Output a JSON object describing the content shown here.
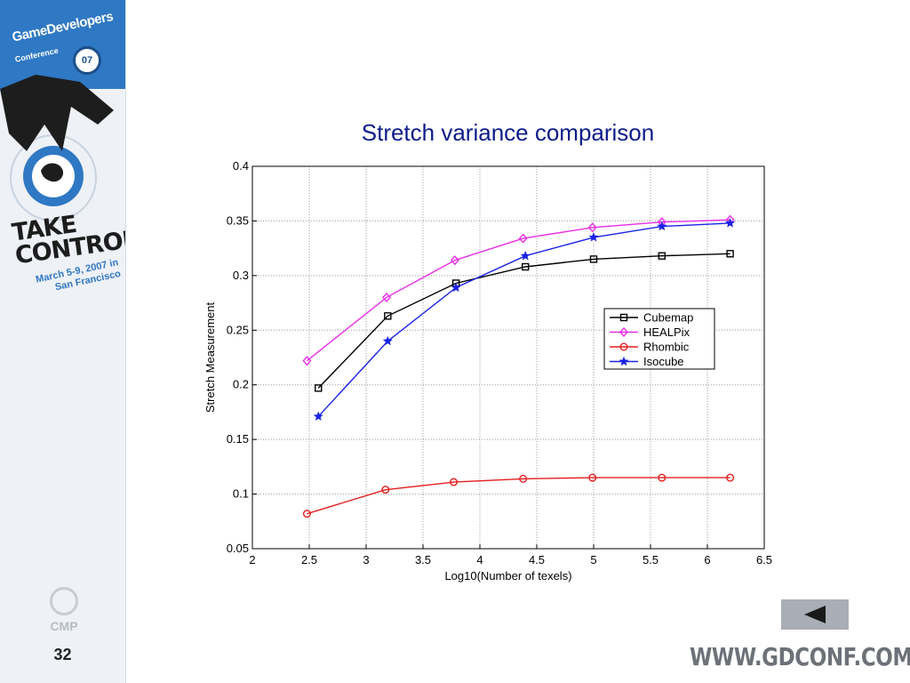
{
  "sidebar": {
    "brand_line1": "GameDevelopers",
    "brand_line2": "Conference",
    "brand_year": "07",
    "slogan": "TAKE CONTROL",
    "dates": "March 5-9, 2007 in San Francisco",
    "sponsor": "CMP",
    "page_number": "32"
  },
  "footer": {
    "website": "WWW.GDCONF.COM",
    "back_icon": "triangle-left-icon"
  },
  "colors": {
    "title": "#0c1d8a",
    "brand_blue": "#2f78c4",
    "cubemap": "#000000",
    "healpix": "#e62ee6",
    "rhombic": "#e61e1e",
    "isocube": "#1a23e6"
  },
  "chart_data": {
    "type": "line",
    "title": "Stretch variance comparison",
    "xlabel": "Log10(Number of texels)",
    "ylabel": "Stretch Measurement",
    "xlim": [
      2,
      6.5
    ],
    "ylim": [
      0.05,
      0.4
    ],
    "xticks": [
      "2",
      "2.5",
      "3",
      "3.5",
      "4",
      "4.5",
      "5",
      "5.5",
      "6",
      "6.5"
    ],
    "yticks": [
      "0.05",
      "0.1",
      "0.15",
      "0.2",
      "0.25",
      "0.3",
      "0.35",
      "0.4"
    ],
    "grid": true,
    "legend_position": "right-middle",
    "series": [
      {
        "name": "Cubemap",
        "marker": "square",
        "color": "#000000",
        "x": [
          2.58,
          3.19,
          3.79,
          4.4,
          5.0,
          5.6,
          6.2
        ],
        "y": [
          0.197,
          0.263,
          0.293,
          0.308,
          0.315,
          0.318,
          0.32
        ]
      },
      {
        "name": "HEALPix",
        "marker": "diamond",
        "color": "#e62ee6",
        "x": [
          2.48,
          3.18,
          3.78,
          4.38,
          4.99,
          5.6,
          6.2
        ],
        "y": [
          0.222,
          0.28,
          0.314,
          0.334,
          0.344,
          0.349,
          0.351
        ]
      },
      {
        "name": "Rhombic",
        "marker": "circle",
        "color": "#e61e1e",
        "x": [
          2.48,
          3.17,
          3.77,
          4.38,
          4.99,
          5.6,
          6.2
        ],
        "y": [
          0.082,
          0.104,
          0.111,
          0.114,
          0.115,
          0.115,
          0.115
        ]
      },
      {
        "name": "Isocube",
        "marker": "star",
        "color": "#1a23e6",
        "x": [
          2.58,
          3.19,
          3.79,
          4.4,
          5.0,
          5.6,
          6.2
        ],
        "y": [
          0.171,
          0.24,
          0.289,
          0.318,
          0.335,
          0.345,
          0.348
        ]
      }
    ]
  }
}
